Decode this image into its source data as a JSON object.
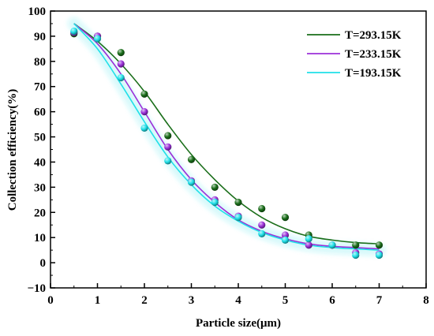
{
  "chart_data": {
    "type": "scatter",
    "xlabel": "Particle size(μm)",
    "ylabel": "Collection efficiency(%)",
    "xlim": [
      0,
      8
    ],
    "ylim": [
      -10,
      100
    ],
    "xticks": [
      0,
      1,
      2,
      3,
      4,
      5,
      6,
      7,
      8
    ],
    "yticks": [
      -10,
      0,
      10,
      20,
      30,
      40,
      50,
      60,
      70,
      80,
      90,
      100
    ],
    "grid": false,
    "legend_position": "top-right",
    "series": [
      {
        "name": "T=293.15K",
        "color": "#1a6e1a",
        "points": [
          [
            0.5,
            91
          ],
          [
            1.0,
            90
          ],
          [
            1.5,
            83.5
          ],
          [
            2.0,
            67
          ],
          [
            2.5,
            50.5
          ],
          [
            3.0,
            41
          ],
          [
            3.5,
            30
          ],
          [
            4.0,
            24
          ],
          [
            4.5,
            21.5
          ],
          [
            5.0,
            18
          ],
          [
            5.5,
            11
          ],
          [
            6.5,
            7
          ],
          [
            7.0,
            7
          ]
        ],
        "fit": [
          [
            0.5,
            95
          ],
          [
            1.0,
            88
          ],
          [
            1.5,
            79
          ],
          [
            2.0,
            68
          ],
          [
            2.5,
            55
          ],
          [
            3.0,
            43
          ],
          [
            3.5,
            33
          ],
          [
            4.0,
            24.5
          ],
          [
            4.5,
            18
          ],
          [
            5.0,
            13.5
          ],
          [
            5.5,
            10.5
          ],
          [
            6.0,
            9
          ],
          [
            6.5,
            8
          ],
          [
            7.0,
            7.5
          ]
        ]
      },
      {
        "name": "T=233.15K",
        "color": "#9b30d9",
        "points": [
          [
            0.5,
            91.5
          ],
          [
            1.0,
            90
          ],
          [
            1.5,
            79
          ],
          [
            2.0,
            60
          ],
          [
            2.5,
            46
          ],
          [
            3.0,
            32.5
          ],
          [
            3.5,
            25
          ],
          [
            4.0,
            18.5
          ],
          [
            4.5,
            15
          ],
          [
            5.0,
            11
          ],
          [
            5.5,
            7
          ],
          [
            6.0,
            7
          ],
          [
            6.5,
            4
          ],
          [
            7.0,
            3.5
          ]
        ],
        "fit": [
          [
            0.5,
            95
          ],
          [
            1.0,
            87
          ],
          [
            1.5,
            75
          ],
          [
            2.0,
            60
          ],
          [
            2.5,
            45
          ],
          [
            3.0,
            33
          ],
          [
            3.5,
            24
          ],
          [
            4.0,
            17
          ],
          [
            4.5,
            12.5
          ],
          [
            5.0,
            9.5
          ],
          [
            5.5,
            7.5
          ],
          [
            6.0,
            6.5
          ],
          [
            6.5,
            6
          ],
          [
            7.0,
            5.5
          ]
        ]
      },
      {
        "name": "T=193.15K",
        "color": "#1fe0e8",
        "points": [
          [
            0.5,
            92
          ],
          [
            1.0,
            89
          ],
          [
            1.5,
            73.5
          ],
          [
            2.0,
            53.5
          ],
          [
            2.5,
            40.5
          ],
          [
            3.0,
            32
          ],
          [
            3.5,
            24
          ],
          [
            4.0,
            18
          ],
          [
            4.5,
            11.5
          ],
          [
            5.0,
            9
          ],
          [
            5.5,
            9.5
          ],
          [
            6.0,
            7
          ],
          [
            6.5,
            3
          ],
          [
            7.0,
            3
          ]
        ],
        "fit": [
          [
            0.5,
            95
          ],
          [
            1.0,
            85
          ],
          [
            1.5,
            71
          ],
          [
            2.0,
            56
          ],
          [
            2.5,
            42
          ],
          [
            3.0,
            31
          ],
          [
            3.5,
            22.5
          ],
          [
            4.0,
            16.5
          ],
          [
            4.5,
            12
          ],
          [
            5.0,
            9
          ],
          [
            5.5,
            7
          ],
          [
            6.0,
            6
          ],
          [
            6.5,
            5.5
          ],
          [
            7.0,
            5
          ]
        ]
      }
    ]
  }
}
